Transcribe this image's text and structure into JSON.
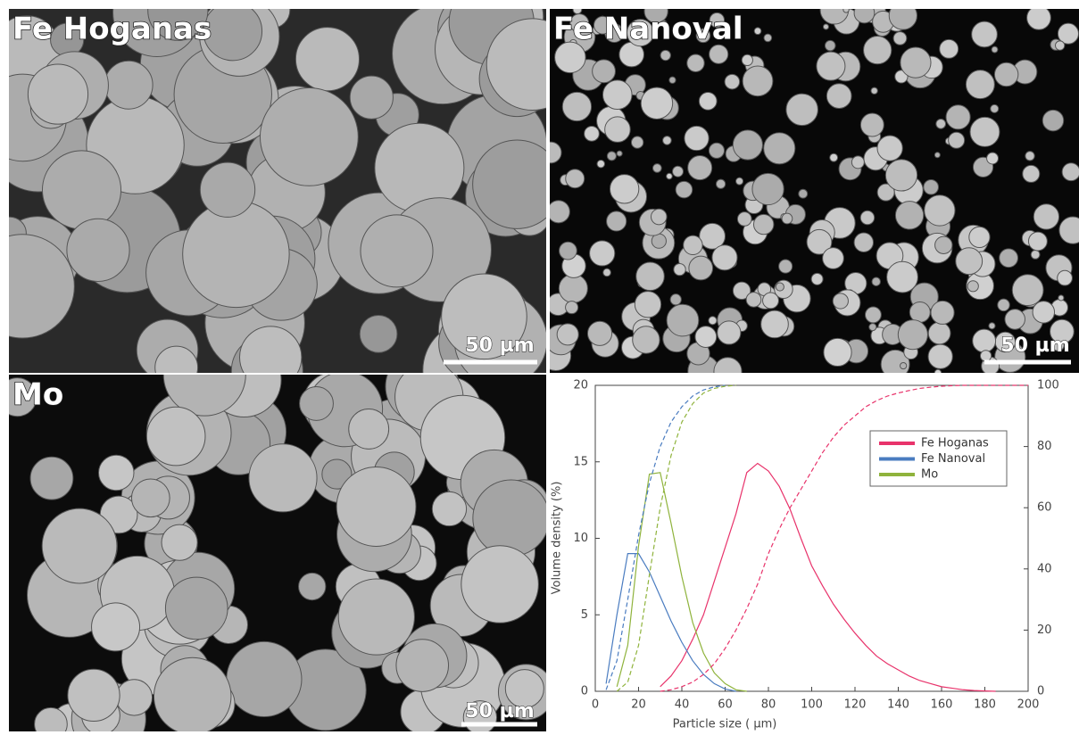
{
  "panels": [
    {
      "label": "Fe Hoganas",
      "scale": "50 µm"
    },
    {
      "label": "Fe Nanoval",
      "scale": "50 µm"
    },
    {
      "label": "Mo",
      "scale": "50 µm"
    }
  ],
  "chart_data": {
    "type": "line",
    "x_label": "Particle size ( µm)",
    "y_label": "Volume density (%)",
    "x": [
      0,
      5,
      10,
      15,
      20,
      25,
      30,
      35,
      40,
      45,
      50,
      55,
      60,
      65,
      70,
      75,
      80,
      85,
      90,
      95,
      100,
      105,
      110,
      115,
      120,
      125,
      130,
      135,
      140,
      145,
      150,
      155,
      160,
      165,
      170,
      175,
      180,
      185,
      190,
      195,
      200
    ],
    "xlim": [
      0,
      200
    ],
    "xticks": [
      0,
      20,
      40,
      60,
      80,
      100,
      120,
      140,
      160,
      180,
      200
    ],
    "ylim": [
      0,
      20
    ],
    "yticks": [
      0,
      5,
      10,
      15,
      20
    ],
    "y2lim": [
      0,
      100
    ],
    "y2ticks": [
      0,
      20,
      40,
      60,
      80,
      100
    ],
    "series": [
      {
        "name": "Fe Hoganas",
        "color": "#e8336b",
        "values": [
          null,
          null,
          null,
          null,
          null,
          null,
          0.3,
          1.0,
          2.0,
          3.4,
          5.0,
          7.2,
          9.4,
          11.6,
          14.3,
          14.9,
          14.4,
          13.4,
          11.9,
          10.0,
          8.2,
          6.9,
          5.7,
          4.7,
          3.8,
          3.0,
          2.3,
          1.8,
          1.4,
          1.0,
          0.7,
          0.5,
          0.3,
          0.2,
          0.1,
          0.05,
          0.02,
          0,
          null,
          null,
          null
        ]
      },
      {
        "name": "Fe Nanoval",
        "color": "#4a7cc0",
        "values": [
          null,
          0.5,
          5.0,
          9.0,
          9.0,
          7.8,
          6.2,
          4.6,
          3.2,
          2.0,
          1.1,
          0.5,
          0.15,
          0,
          null,
          null,
          null,
          null,
          null,
          null,
          null,
          null,
          null,
          null,
          null,
          null,
          null,
          null,
          null,
          null,
          null,
          null,
          null,
          null,
          null,
          null,
          null,
          null,
          null,
          null,
          null
        ]
      },
      {
        "name": "Mo",
        "color": "#8fb33c",
        "values": [
          null,
          null,
          0.3,
          3.0,
          9.5,
          14.2,
          14.3,
          11.0,
          7.5,
          4.5,
          2.5,
          1.2,
          0.5,
          0.1,
          0,
          null,
          null,
          null,
          null,
          null,
          null,
          null,
          null,
          null,
          null,
          null,
          null,
          null,
          null,
          null,
          null,
          null,
          null,
          null,
          null,
          null,
          null,
          null,
          null,
          null,
          null
        ]
      },
      {
        "color": "#e8336b",
        "axis": "y2",
        "dash": true,
        "values": [
          null,
          null,
          null,
          null,
          null,
          null,
          0,
          0.5,
          1.5,
          3,
          5.5,
          9,
          14,
          20,
          27,
          35,
          45,
          53,
          60,
          66,
          72,
          78,
          83,
          87,
          90,
          93,
          95,
          96.5,
          97.5,
          98.3,
          99,
          99.4,
          99.7,
          99.9,
          100,
          100,
          100,
          100,
          100,
          100,
          100
        ]
      },
      {
        "color": "#4a7cc0",
        "axis": "y2",
        "dash": true,
        "values": [
          null,
          0.5,
          10,
          30,
          51,
          68,
          80,
          88,
          93,
          96.5,
          98.5,
          99.5,
          100,
          null,
          null,
          null,
          null,
          null,
          null,
          null,
          null,
          null,
          null,
          null,
          null,
          null,
          null,
          null,
          null,
          null,
          null,
          null,
          null,
          null,
          null,
          null,
          null,
          null,
          null,
          null,
          null
        ]
      },
      {
        "color": "#8fb33c",
        "axis": "y2",
        "dash": true,
        "values": [
          null,
          null,
          0,
          3,
          15,
          38,
          60,
          77,
          88,
          94,
          97.5,
          99,
          99.7,
          100,
          null,
          null,
          null,
          null,
          null,
          null,
          null,
          null,
          null,
          null,
          null,
          null,
          null,
          null,
          null,
          null,
          null,
          null,
          null,
          null,
          null,
          null,
          null,
          null,
          null,
          null,
          null
        ]
      }
    ]
  }
}
